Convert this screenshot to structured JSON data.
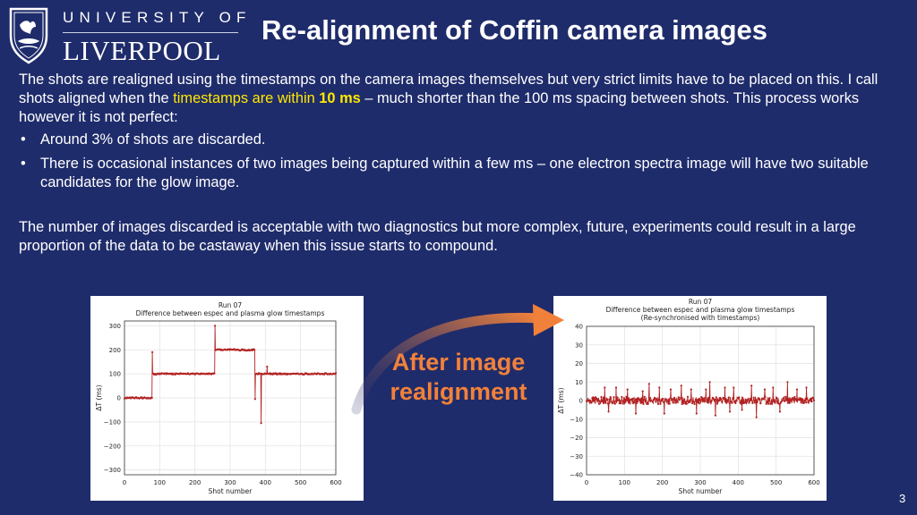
{
  "logo": {
    "line1": "UNIVERSITY OF",
    "line2": "LIVERPOOL"
  },
  "title": "Re-alignment of Coffin camera images",
  "body": {
    "p1_part1": "The shots are realigned using the timestamps on the camera images themselves but very strict limits have to be placed on this. I call shots aligned when the ",
    "p1_highlight": "timestamps are within ",
    "p1_bold": "10 ms",
    "p1_part2": " – much shorter than the 100 ms spacing between shots. This process works however it is not perfect:",
    "bullet_char": "•",
    "bullets": [
      "Around 3% of shots are discarded.",
      "There is occasional instances of two images being captured within a few ms – one electron spectra image will have two suitable candidates for the glow image."
    ],
    "p2": "The number of images discarded is acceptable with two diagnostics but more complex, future, experiments could result in a large proportion of the data to be castaway when this issue starts to compound."
  },
  "callout": {
    "line1": "After image",
    "line2": "realignment",
    "color": "#f1813a"
  },
  "page_number": "3",
  "colors": {
    "background": "#1f2c6b",
    "highlight": "#ffe800",
    "series": "#b22222"
  },
  "chart_data": [
    {
      "type": "line",
      "title": "Run 07",
      "subtitle": "Difference between espec and plasma glow timestamps",
      "xlabel": "Shot number",
      "ylabel": "ΔT (ms)",
      "xlim": [
        0,
        600
      ],
      "ylim": [
        -320,
        320
      ],
      "xticks": [
        0,
        100,
        200,
        300,
        400,
        500,
        600
      ],
      "yticks": [
        -300,
        -200,
        -100,
        0,
        100,
        200,
        300
      ],
      "grid": true,
      "segments": [
        {
          "x_start": 0,
          "x_end": 78,
          "y": 0
        },
        {
          "x_start": 80,
          "x_end": 257,
          "y": 100
        },
        {
          "x_start": 258,
          "x_end": 370,
          "y": 200
        },
        {
          "x_start": 372,
          "x_end": 600,
          "y": 100
        }
      ],
      "spikes": [
        {
          "x": 79,
          "y": 190
        },
        {
          "x": 257,
          "y": 300
        },
        {
          "x": 288,
          "y": 200
        },
        {
          "x": 371,
          "y": -5
        },
        {
          "x": 388,
          "y": -105
        },
        {
          "x": 405,
          "y": 130
        }
      ],
      "noise": 3
    },
    {
      "type": "line",
      "title": "Run 07",
      "subtitle": "Difference between espec and plasma glow timestamps",
      "subtitle2": "(Re-synchronised with timestamps)",
      "xlabel": "Shot number",
      "ylabel": "ΔT (ms)",
      "xlim": [
        0,
        600
      ],
      "ylim": [
        -40,
        40
      ],
      "xticks": [
        0,
        100,
        200,
        300,
        400,
        500,
        600
      ],
      "yticks": [
        -40,
        -30,
        -20,
        -10,
        0,
        10,
        20,
        30,
        40
      ],
      "grid": true,
      "baseline": 0,
      "noise": 2,
      "spikes": [
        {
          "x": 48,
          "y": 7
        },
        {
          "x": 58,
          "y": -6
        },
        {
          "x": 78,
          "y": 7
        },
        {
          "x": 108,
          "y": 6
        },
        {
          "x": 130,
          "y": -7
        },
        {
          "x": 148,
          "y": 5
        },
        {
          "x": 165,
          "y": 9
        },
        {
          "x": 192,
          "y": 7
        },
        {
          "x": 205,
          "y": -7
        },
        {
          "x": 222,
          "y": 6
        },
        {
          "x": 250,
          "y": 8
        },
        {
          "x": 276,
          "y": 6
        },
        {
          "x": 290,
          "y": -7
        },
        {
          "x": 315,
          "y": 6
        },
        {
          "x": 325,
          "y": 10
        },
        {
          "x": 340,
          "y": -8
        },
        {
          "x": 365,
          "y": 7
        },
        {
          "x": 378,
          "y": -6
        },
        {
          "x": 388,
          "y": 7
        },
        {
          "x": 410,
          "y": -5
        },
        {
          "x": 435,
          "y": 8
        },
        {
          "x": 448,
          "y": -9
        },
        {
          "x": 470,
          "y": 6
        },
        {
          "x": 492,
          "y": 7
        },
        {
          "x": 510,
          "y": -6
        },
        {
          "x": 530,
          "y": 10
        },
        {
          "x": 555,
          "y": 6
        },
        {
          "x": 580,
          "y": 7
        }
      ]
    }
  ]
}
